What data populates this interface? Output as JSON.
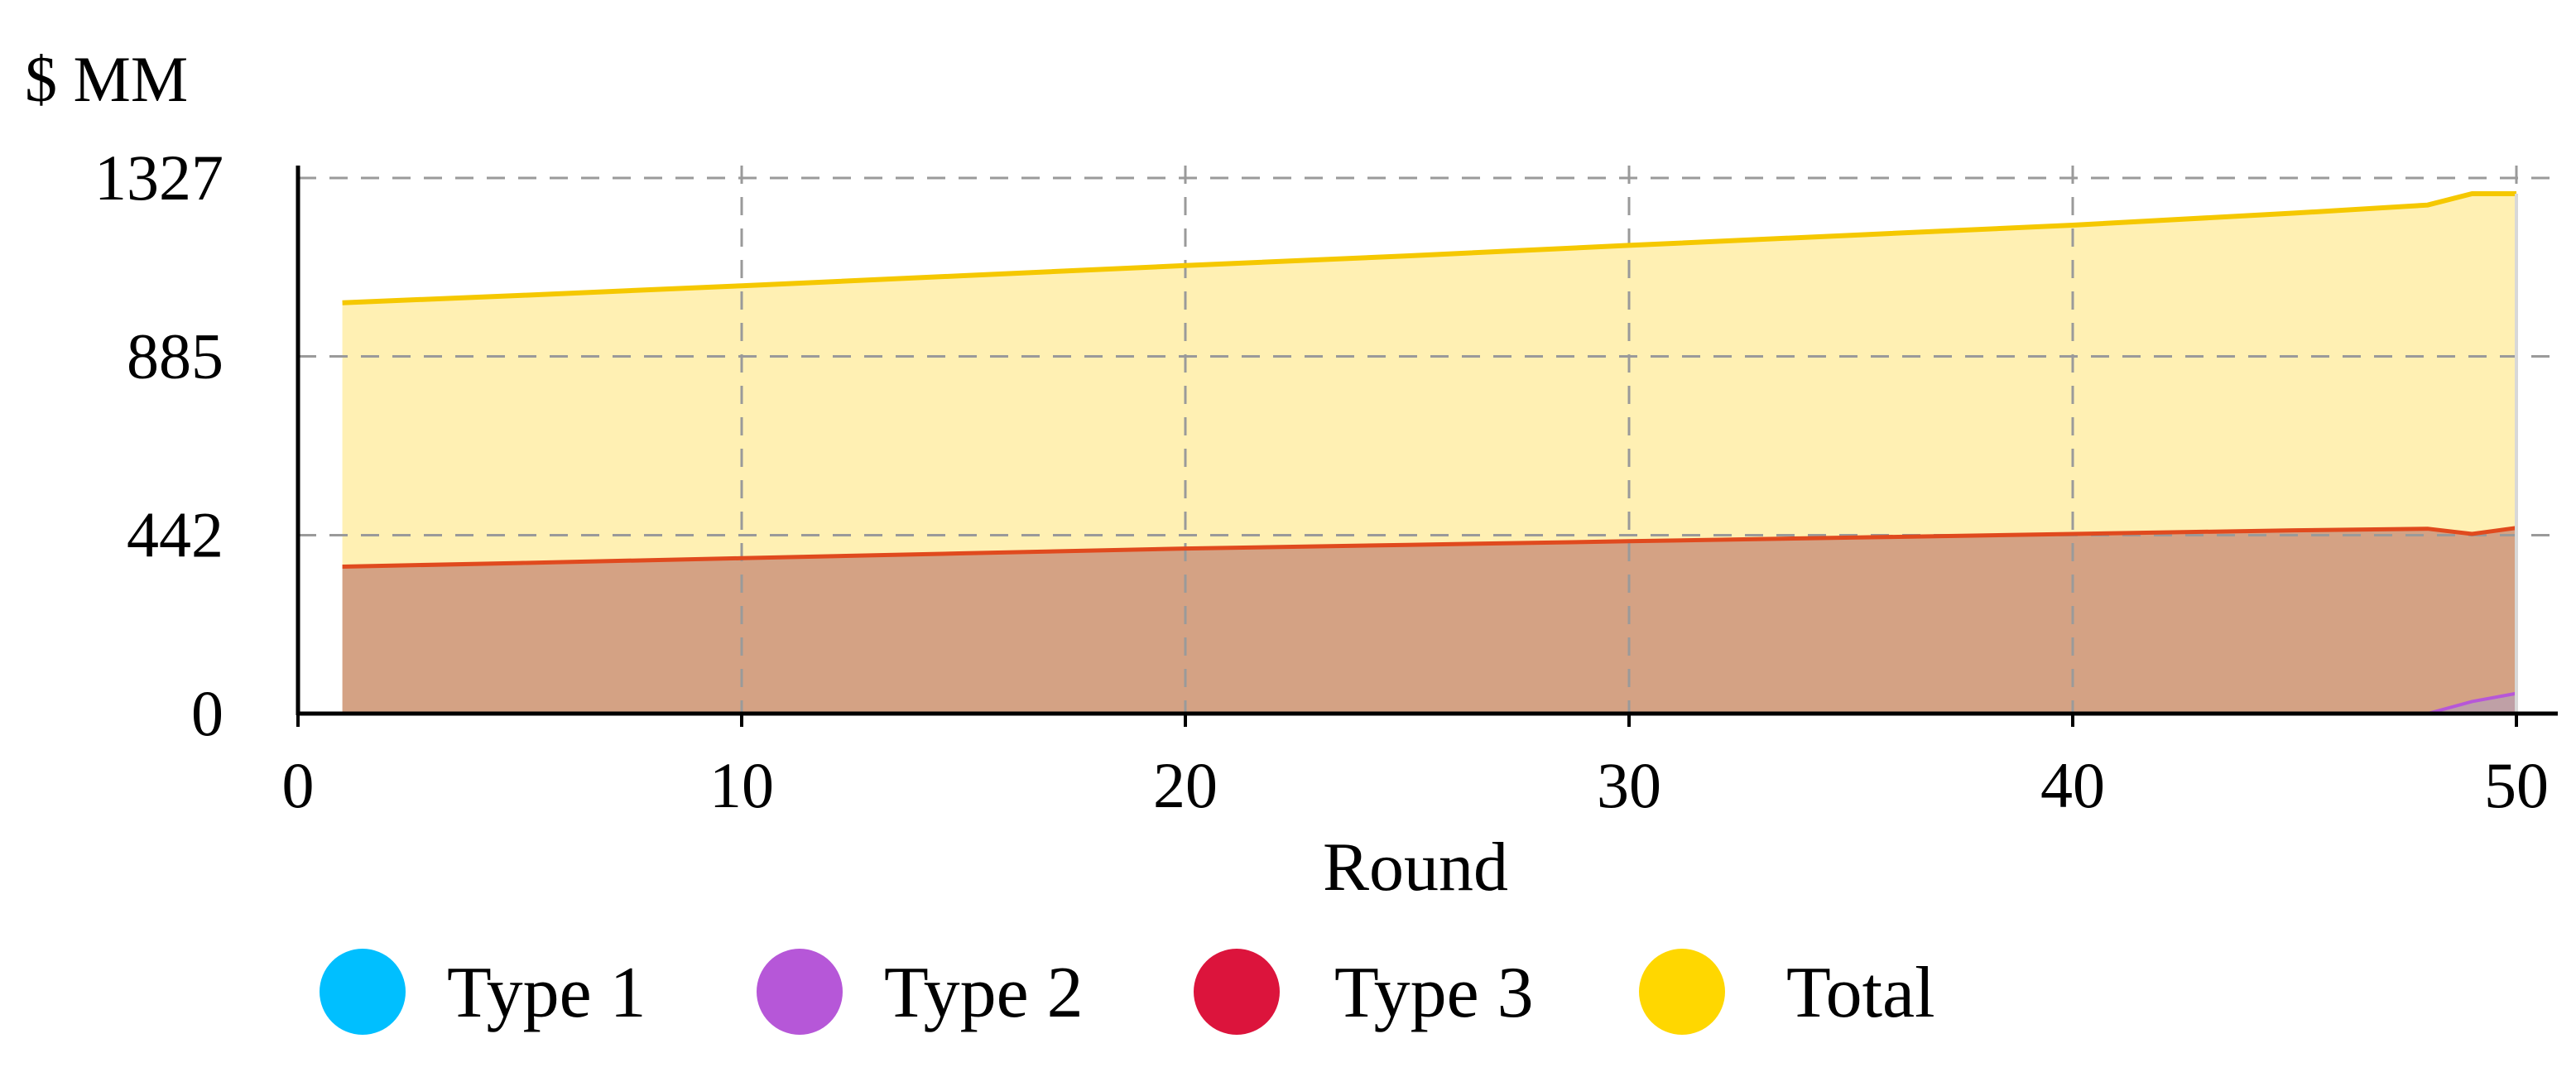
{
  "chart_data": {
    "type": "area",
    "title": "",
    "unit_label": "$ MM",
    "xlabel": "Round",
    "ylabel": "$ MM",
    "xlim": [
      0,
      50
    ],
    "ylim": [
      0,
      1327
    ],
    "x_ticks": [
      0,
      10,
      20,
      30,
      40,
      50
    ],
    "y_ticks": [
      0,
      442,
      885,
      1327
    ],
    "grid": true,
    "legend_position": "bottom",
    "x": [
      1,
      5,
      10,
      15,
      20,
      25,
      30,
      35,
      40,
      45,
      48,
      49,
      50
    ],
    "series": [
      {
        "name": "Type 1",
        "color": "#00BFFF",
        "values": [
          0,
          0,
          0,
          0,
          0,
          0,
          0,
          0,
          0,
          0,
          0,
          0,
          0
        ]
      },
      {
        "name": "Type 2",
        "color": "#B657D8",
        "values": [
          0,
          0,
          0,
          0,
          0,
          0,
          0,
          0,
          0,
          0,
          0,
          30,
          50
        ]
      },
      {
        "name": "Type 3",
        "color": "#DC143C",
        "values": [
          364,
          373,
          385,
          397,
          409,
          418,
          427,
          436,
          445,
          454,
          458,
          415,
          410
        ]
      },
      {
        "name": "Total",
        "color": "#FFD700",
        "values": [
          1018,
          1036,
          1060,
          1085,
          1110,
          1134,
          1160,
          1185,
          1210,
          1240,
          1260,
          1288,
          1288
        ]
      }
    ]
  }
}
